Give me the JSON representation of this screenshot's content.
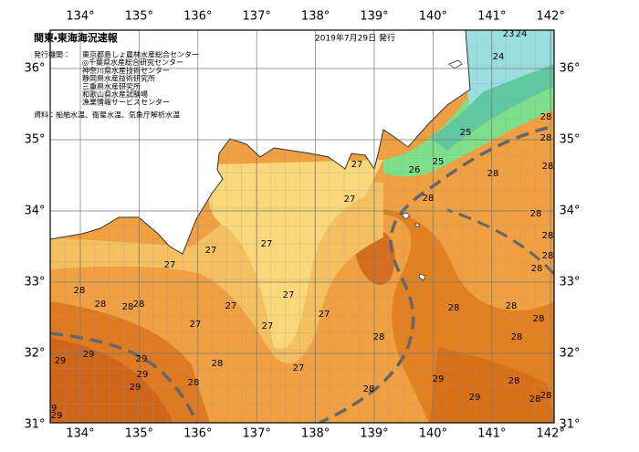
{
  "header": {
    "title": "関東・東海海況速報",
    "date": "2019年7月29日 発行"
  },
  "issuers": {
    "label": "発行機関：",
    "names": [
      "東京都島しょ農林水産総合センター",
      "◎千葉県水産総合研究センター",
      "神奈川県水産技術センター",
      "静岡県水産技術研究所",
      "三重県水産研究所",
      "和歌山県水産試験場",
      "漁業情報サービスセンター"
    ]
  },
  "source": "資料：船舶水温、衛星水温、気象庁解析水温",
  "longitudes": [
    {
      "value": 134,
      "label": "134°"
    },
    {
      "value": 135,
      "label": "135°"
    },
    {
      "value": 136,
      "label": "136°"
    },
    {
      "value": 137,
      "label": "137°"
    },
    {
      "value": 138,
      "label": "138°"
    },
    {
      "value": 139,
      "label": "139°"
    },
    {
      "value": 140,
      "label": "140°"
    },
    {
      "value": 141,
      "label": "141°"
    },
    {
      "value": 142,
      "label": "142°"
    }
  ],
  "latitudes": [
    {
      "value": 31,
      "label": "31°"
    },
    {
      "value": 32,
      "label": "32°"
    },
    {
      "value": 33,
      "label": "33°"
    },
    {
      "value": 34,
      "label": "34°"
    },
    {
      "value": 35,
      "label": "35°"
    },
    {
      "value": 36,
      "label": "36°"
    }
  ],
  "contour_labels": [
    23,
    24,
    24,
    25,
    25,
    26,
    27,
    27,
    28,
    28,
    28,
    28,
    28,
    28,
    28,
    28,
    28,
    28,
    28,
    28,
    28,
    28,
    28,
    27,
    27,
    27,
    27,
    27,
    27,
    27,
    27,
    27,
    28,
    28,
    28,
    28,
    28,
    28,
    29,
    29,
    29,
    29,
    29,
    29,
    29,
    29,
    29,
    28,
    28,
    28
  ]
}
